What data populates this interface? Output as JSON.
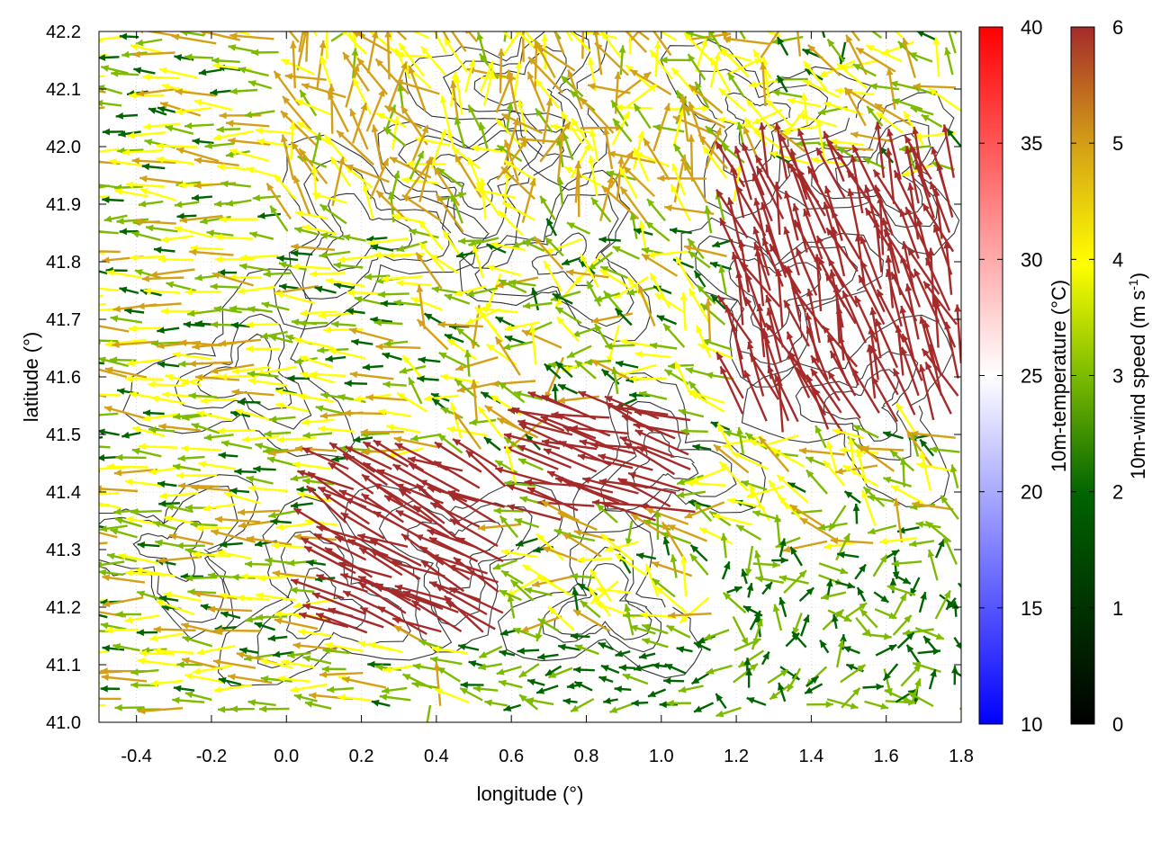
{
  "chart_data": {
    "type": "vector_field",
    "xlabel": "longitude (°)",
    "ylabel": "latitude (°)",
    "xlim": [
      -0.5,
      1.8
    ],
    "ylim": [
      41.0,
      42.2
    ],
    "xticks": [
      "-0.4",
      "-0.2",
      "0.0",
      "0.2",
      "0.4",
      "0.6",
      "0.8",
      "1.0",
      "1.2",
      "1.4",
      "1.6",
      "1.8"
    ],
    "yticks": [
      "41.0",
      "41.1",
      "41.2",
      "41.3",
      "41.4",
      "41.5",
      "41.6",
      "41.7",
      "41.8",
      "41.9",
      "42.0",
      "42.1",
      "42.2"
    ],
    "grid": true,
    "colorbars": [
      {
        "label": "10m-temperature (°C)",
        "range": [
          10,
          40
        ],
        "ticks": [
          "10",
          "15",
          "20",
          "25",
          "30",
          "35",
          "40"
        ],
        "colors": [
          "#0000ff",
          "#ffffff",
          "#ff0000"
        ]
      },
      {
        "label": "10m-wind speed (m s-1)",
        "label_main": "10m-wind speed (m s",
        "label_sup": "-1",
        "label_end": ")",
        "range": [
          0,
          6
        ],
        "ticks": [
          "0",
          "1",
          "2",
          "3",
          "4",
          "5",
          "6"
        ],
        "colors": [
          "#000000",
          "#006400",
          "#7cbb00",
          "#ffff00",
          "#d4a017",
          "#a52a2a"
        ]
      }
    ],
    "vector_regions": [
      {
        "region": "west",
        "lon": [
          -0.5,
          0.35
        ],
        "lat": [
          41.0,
          42.2
        ],
        "u": -3.4,
        "v": 0.2,
        "speed": [
          1.5,
          4.5
        ]
      },
      {
        "region": "north",
        "lon": [
          0.0,
          1.3
        ],
        "lat": [
          41.85,
          42.2
        ],
        "u": -0.4,
        "v": 0.8,
        "speed": [
          2.5,
          5.0
        ]
      },
      {
        "region": "south-central",
        "lon": [
          0.15,
          0.6
        ],
        "lat": [
          41.15,
          41.45
        ],
        "u": -3.0,
        "v": 1.5,
        "speed": [
          5.0,
          6.0
        ]
      },
      {
        "region": "central",
        "lon": [
          0.7,
          1.1
        ],
        "lat": [
          41.35,
          41.55
        ],
        "u": -3.6,
        "v": 1.0,
        "speed": [
          5.5,
          6.0
        ]
      },
      {
        "region": "east",
        "lon": [
          1.2,
          1.8
        ],
        "lat": [
          41.5,
          41.95
        ],
        "u": -0.9,
        "v": 2.6,
        "speed": [
          5.0,
          6.0
        ]
      },
      {
        "region": "southeast",
        "lon": [
          1.15,
          1.8
        ],
        "lat": [
          41.0,
          41.3
        ],
        "u": 0.1,
        "v": 0.3,
        "speed": [
          1.0,
          3.0
        ]
      },
      {
        "region": "south",
        "lon": [
          0.5,
          1.15
        ],
        "lat": [
          41.0,
          41.15
        ],
        "u": -1.5,
        "v": 0.1,
        "speed": [
          1.0,
          2.5
        ]
      }
    ]
  }
}
